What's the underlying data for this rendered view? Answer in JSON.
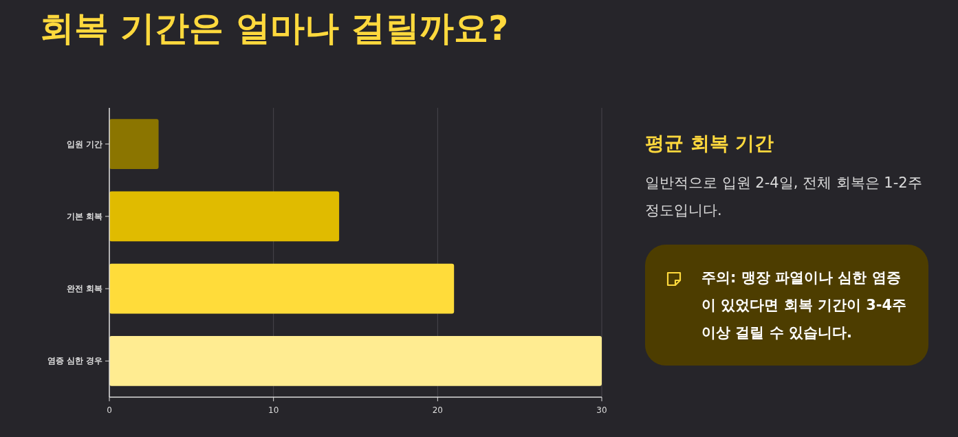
{
  "chart_data": [
    {
      "type": "bar",
      "orientation": "horizontal",
      "title": "회복 기간은 얼마나 걸릴까요?",
      "categories": [
        "입원 기간",
        "기본 회복",
        "완전 회복",
        "염증 심한 경우"
      ],
      "values": [
        3,
        14,
        21,
        30
      ],
      "colors": [
        "#8b7500",
        "#e0bb00",
        "#ffdc3a",
        "#ffec91"
      ],
      "xlim": [
        0,
        30
      ],
      "xticks": [
        0,
        10,
        20,
        30
      ],
      "grid": "x"
    },
    {
      "type": "other",
      "title": "평균 회복 기간",
      "annotations": [
        "일반적으로 입원 2-4일, 전체 회복은 1-2주 정도입니다.",
        "주의: 맹장 파열이나 심한 염증이 있었다면 회복 기간이 3-4주 이상 걸릴 수 있습니다."
      ]
    }
  ]
}
